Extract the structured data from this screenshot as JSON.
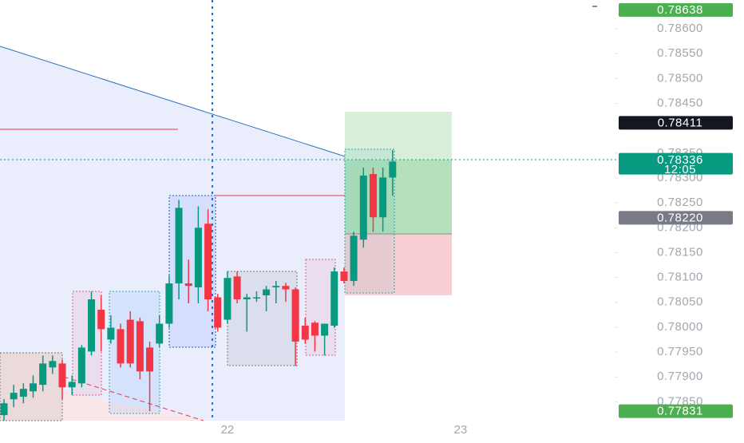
{
  "chart_data": {
    "type": "candlestick",
    "categories": [
      null,
      null,
      null,
      null,
      null,
      null,
      null,
      null,
      null,
      null,
      null,
      null,
      null,
      null,
      null,
      null,
      null,
      null,
      null,
      null,
      null,
      null,
      null,
      "22",
      null,
      null,
      null,
      null,
      null,
      null,
      null,
      null,
      null,
      null,
      null,
      null,
      null,
      null,
      null,
      null,
      null,
      null,
      null,
      null,
      null,
      null,
      null,
      "23",
      null,
      null,
      null,
      null,
      null,
      null,
      null,
      null,
      null,
      null,
      null,
      null,
      null,
      null,
      null
    ],
    "open": [
      0.77823,
      0.77855,
      0.7786,
      0.77871,
      0.77884,
      0.77919,
      0.77927,
      0.77879,
      0.77887,
      0.77951,
      0.78035,
      0.77975,
      0.77996,
      0.78015,
      0.78012,
      0.77959,
      0.77967,
      0.78007,
      0.78088,
      0.78088,
      0.7808,
      0.78208,
      0.7806,
      0.78015,
      0.78102,
      0.78056,
      0.7806,
      0.78064,
      0.7808,
      0.78083,
      0.78076,
      0.78003,
      0.78009,
      0.77983,
      0.78003,
      0.78112,
      0.78093,
      0.78176,
      0.78308,
      0.78221,
      0.78301,
      null,
      null,
      null,
      null,
      null,
      null,
      null,
      null,
      null,
      null,
      null,
      null,
      null,
      null,
      null,
      null,
      null,
      null,
      null,
      null,
      null,
      null
    ],
    "high": [
      0.77855,
      0.77884,
      0.77887,
      0.77903,
      0.77943,
      0.77943,
      0.77935,
      0.77903,
      0.77964,
      0.78072,
      0.78064,
      0.78024,
      0.78007,
      0.78032,
      0.78019,
      0.77971,
      0.78024,
      0.78104,
      0.78256,
      0.78136,
      0.78243,
      0.78237,
      0.78067,
      0.78112,
      0.78112,
      0.78067,
      0.78072,
      0.78083,
      0.78093,
      0.78089,
      0.7808,
      0.78019,
      0.78012,
      0.78007,
      0.7812,
      0.7812,
      0.78192,
      0.78321,
      0.78321,
      0.78321,
      0.78356,
      null,
      null,
      null,
      null,
      null,
      null,
      null,
      null,
      null,
      null,
      null,
      null,
      null,
      null,
      null,
      null,
      null,
      null,
      null,
      null,
      null,
      null
    ],
    "low": [
      0.77812,
      0.77839,
      0.77847,
      0.77858,
      0.77871,
      0.77906,
      0.77855,
      0.77863,
      0.77879,
      0.77943,
      0.77951,
      0.77967,
      0.77919,
      0.77919,
      0.77895,
      0.77831,
      0.77959,
      0.77999,
      0.78056,
      0.78048,
      0.78048,
      0.78032,
      0.77991,
      0.78007,
      0.78048,
      0.77991,
      0.78051,
      0.78032,
      0.78048,
      0.78051,
      0.77922,
      0.77967,
      0.77951,
      0.77943,
      0.77999,
      0.78088,
      0.78083,
      0.7816,
      0.78192,
      0.78192,
      0.78264,
      null,
      null,
      null,
      null,
      null,
      null,
      null,
      null,
      null,
      null,
      null,
      null,
      null,
      null,
      null,
      null,
      null,
      null,
      null,
      null,
      null,
      null
    ],
    "close": [
      0.77847,
      0.77868,
      0.77876,
      0.77887,
      0.77927,
      0.77932,
      0.77879,
      0.7789,
      0.77959,
      0.78056,
      0.77996,
      0.77999,
      0.77927,
      0.77927,
      0.77911,
      0.77911,
      0.78007,
      0.78088,
      0.7824,
      0.78083,
      0.782,
      0.78056,
      0.77999,
      0.78099,
      0.78056,
      0.7806,
      0.7806,
      0.78076,
      0.78083,
      0.78076,
      0.77971,
      0.77975,
      0.77983,
      0.78007,
      0.78112,
      0.78093,
      0.78184,
      0.78305,
      0.78221,
      0.78301,
      0.78333,
      null,
      null,
      null,
      null,
      null,
      null,
      null,
      null,
      null,
      null,
      null,
      null,
      null,
      null,
      null,
      null,
      null,
      null,
      null,
      null,
      null,
      null
    ],
    "up_color": "#089981",
    "down_color": "#f23645",
    "ylim": [
      0.77812,
      0.78658
    ],
    "yticks": [
      {
        "value": 0.786,
        "label": "0.78600"
      },
      {
        "value": 0.7855,
        "label": "0.78550"
      },
      {
        "value": 0.785,
        "label": "0.78500"
      },
      {
        "value": 0.7845,
        "label": "0.78450"
      },
      {
        "value": 0.7835,
        "label": "0.78350"
      },
      {
        "value": 0.783,
        "label": "0.78300"
      },
      {
        "value": 0.7825,
        "label": "0.78250"
      },
      {
        "value": 0.782,
        "label": "0.78200"
      },
      {
        "value": 0.7815,
        "label": "0.78150"
      },
      {
        "value": 0.781,
        "label": "0.78100"
      },
      {
        "value": 0.7805,
        "label": "0.78050"
      },
      {
        "value": 0.78,
        "label": "0.78000"
      },
      {
        "value": 0.7795,
        "label": "0.77950"
      },
      {
        "value": 0.779,
        "label": "0.77900"
      },
      {
        "value": 0.7785,
        "label": "0.77850"
      }
    ],
    "price_labels": [
      {
        "value": 0.78638,
        "label": "0.78638",
        "color": "#4caf50"
      },
      {
        "value": 0.78411,
        "label": "0.78411",
        "color": "#131722"
      },
      {
        "value": 0.7822,
        "label": "0.78220",
        "color": "#787b86"
      },
      {
        "value": 0.77831,
        "label": "0.77831",
        "color": "#4caf50"
      },
      {
        "value": 0.78336,
        "label": "0.78336",
        "color": "#089981",
        "countdown": "12:05"
      }
    ],
    "grid": false
  }
}
